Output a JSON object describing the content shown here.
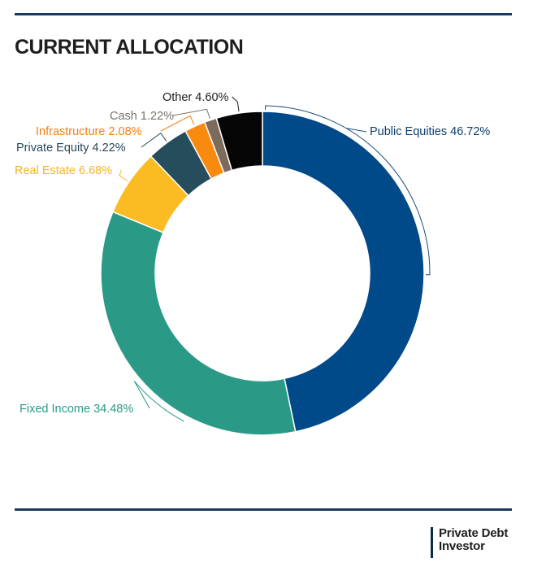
{
  "page": {
    "title": "CURRENT ALLOCATION",
    "brand": {
      "line1": "Private Debt",
      "line2": "Investor"
    }
  },
  "chart_data": {
    "type": "pie",
    "style": "donut",
    "title": "CURRENT ALLOCATION",
    "start": "12 o'clock, clockwise",
    "legend": "none (leader-line labels)",
    "slices": [
      {
        "name": "Public Equities",
        "value": 46.72,
        "label": "Public Equities 46.72%",
        "color": "#004a8a",
        "label_color": "#0d3d6d",
        "line_color": "#1d4f7c"
      },
      {
        "name": "Fixed Income",
        "value": 34.48,
        "label": "Fixed Income 34.48%",
        "color": "#2a9a87",
        "label_color": "#2a9a87",
        "line_color": "#2a9a87"
      },
      {
        "name": "Real Estate",
        "value": 6.68,
        "label": "Real Estate 6.68%",
        "color": "#fbbb22",
        "label_color": "#f1b42a",
        "line_color": "#f1b42a"
      },
      {
        "name": "Private Equity",
        "value": 4.22,
        "label": "Private Equity 4.22%",
        "color": "#264d5b",
        "label_color": "#27475a",
        "line_color": "#27475a"
      },
      {
        "name": "Infrastructure",
        "value": 2.08,
        "label": "Infrastructure 2.08%",
        "color": "#f98a10",
        "label_color": "#f27f12",
        "line_color": "#f27f12"
      },
      {
        "name": "Cash",
        "value": 1.22,
        "label": "Cash 1.22%",
        "color": "#7c6a5c",
        "label_color": "#7a7068",
        "line_color": "#7a7068"
      },
      {
        "name": "Other",
        "value": 4.6,
        "label": "Other 4.60%",
        "color": "#050505",
        "label_color": "#1e1e1e",
        "line_color": "#1e1e1e"
      }
    ]
  }
}
